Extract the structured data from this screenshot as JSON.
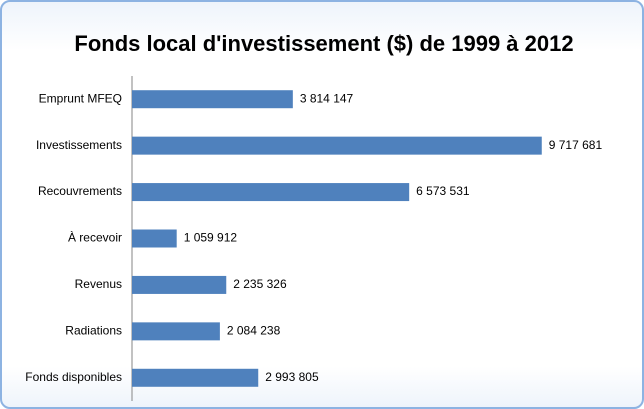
{
  "chart_data": {
    "type": "bar",
    "orientation": "horizontal",
    "title": "Fonds local d'investissement ($) de 1999 à 2012",
    "categories": [
      "Emprunt MFEQ",
      "Investissements",
      "Recouvrements",
      "À recevoir",
      "Revenus",
      "Radiations",
      "Fonds disponibles"
    ],
    "values": [
      3814147,
      9717681,
      6573531,
      1059912,
      2235326,
      2084238,
      2993805
    ],
    "value_labels": [
      "3 814 147",
      "9 717 681",
      "6 573 531",
      "1 059 912",
      "2 235 326",
      "2 084 238",
      "2 993 805"
    ],
    "color": "#4f81bd",
    "xlim": [
      0,
      12000000
    ]
  }
}
